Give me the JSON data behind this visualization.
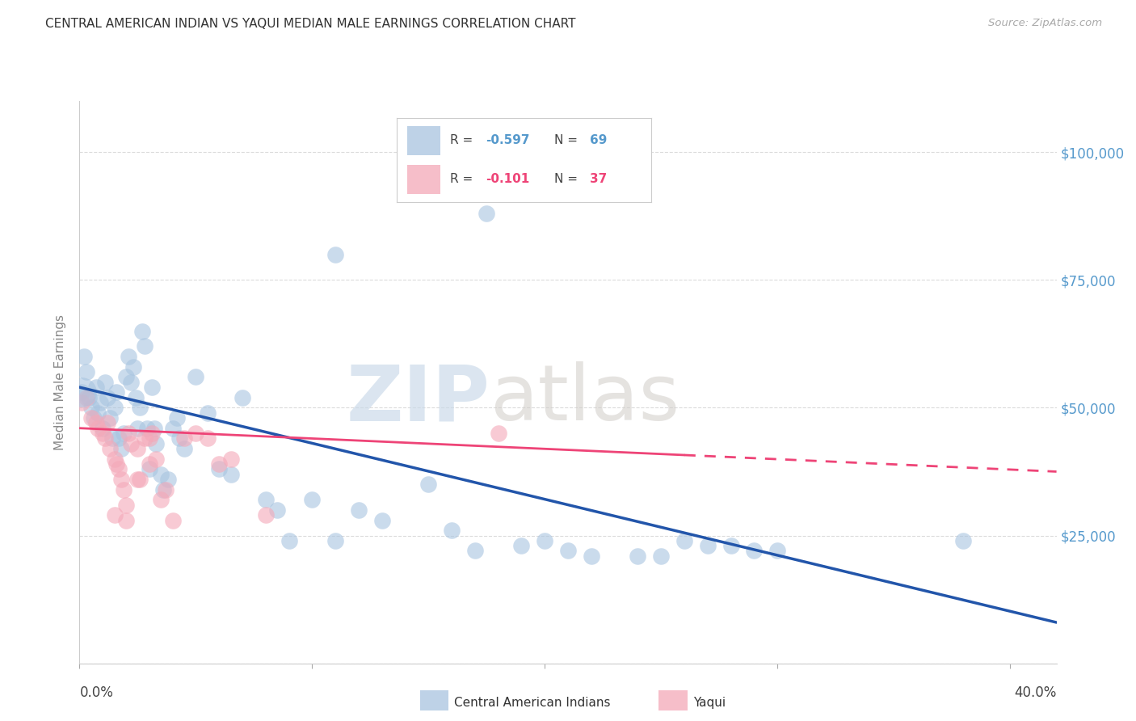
{
  "title": "CENTRAL AMERICAN INDIAN VS YAQUI MEDIAN MALE EARNINGS CORRELATION CHART",
  "source": "Source: ZipAtlas.com",
  "ylabel": "Median Male Earnings",
  "y_ticks": [
    0,
    25000,
    50000,
    75000,
    100000
  ],
  "y_tick_labels": [
    "",
    "$25,000",
    "$50,000",
    "$75,000",
    "$100,000"
  ],
  "x_ticks": [
    0.0,
    0.1,
    0.2,
    0.3,
    0.4
  ],
  "x_tick_labels": [
    "0.0%",
    "",
    "",
    "",
    "40.0%"
  ],
  "xlim": [
    0.0,
    0.42
  ],
  "ylim": [
    0,
    110000
  ],
  "background_color": "#ffffff",
  "grid_color": "#cccccc",
  "watermark_zip": "ZIP",
  "watermark_atlas": "atlas",
  "legend_r1": "-0.597",
  "legend_n1": "69",
  "legend_r2": "-0.101",
  "legend_n2": "37",
  "blue_color": "#a8c4e0",
  "pink_color": "#f4a8b8",
  "blue_line_color": "#2255aa",
  "pink_line_color": "#ee4477",
  "title_color": "#333333",
  "axis_label_color": "#888888",
  "tick_label_color": "#5599cc",
  "source_color": "#aaaaaa",
  "blue_scatter": [
    [
      0.001,
      53000
    ],
    [
      0.002,
      60000
    ],
    [
      0.003,
      57000
    ],
    [
      0.004,
      52000
    ],
    [
      0.005,
      50000
    ],
    [
      0.006,
      48000
    ],
    [
      0.007,
      54000
    ],
    [
      0.008,
      49000
    ],
    [
      0.009,
      51000
    ],
    [
      0.01,
      46000
    ],
    [
      0.011,
      55000
    ],
    [
      0.012,
      52000
    ],
    [
      0.013,
      48000
    ],
    [
      0.014,
      44000
    ],
    [
      0.015,
      50000
    ],
    [
      0.016,
      53000
    ],
    [
      0.017,
      44000
    ],
    [
      0.018,
      42000
    ],
    [
      0.019,
      45000
    ],
    [
      0.02,
      56000
    ],
    [
      0.021,
      60000
    ],
    [
      0.022,
      55000
    ],
    [
      0.023,
      58000
    ],
    [
      0.024,
      52000
    ],
    [
      0.025,
      46000
    ],
    [
      0.026,
      50000
    ],
    [
      0.027,
      65000
    ],
    [
      0.028,
      62000
    ],
    [
      0.029,
      46000
    ],
    [
      0.03,
      38000
    ],
    [
      0.031,
      54000
    ],
    [
      0.032,
      46000
    ],
    [
      0.033,
      43000
    ],
    [
      0.035,
      37000
    ],
    [
      0.036,
      34000
    ],
    [
      0.038,
      36000
    ],
    [
      0.04,
      46000
    ],
    [
      0.042,
      48000
    ],
    [
      0.043,
      44000
    ],
    [
      0.045,
      42000
    ],
    [
      0.05,
      56000
    ],
    [
      0.055,
      49000
    ],
    [
      0.06,
      38000
    ],
    [
      0.065,
      37000
    ],
    [
      0.07,
      52000
    ],
    [
      0.08,
      32000
    ],
    [
      0.085,
      30000
    ],
    [
      0.09,
      24000
    ],
    [
      0.1,
      32000
    ],
    [
      0.11,
      24000
    ],
    [
      0.12,
      30000
    ],
    [
      0.13,
      28000
    ],
    [
      0.15,
      35000
    ],
    [
      0.16,
      26000
    ],
    [
      0.17,
      22000
    ],
    [
      0.175,
      88000
    ],
    [
      0.19,
      23000
    ],
    [
      0.2,
      24000
    ],
    [
      0.21,
      22000
    ],
    [
      0.22,
      21000
    ],
    [
      0.24,
      21000
    ],
    [
      0.25,
      21000
    ],
    [
      0.26,
      24000
    ],
    [
      0.27,
      23000
    ],
    [
      0.28,
      23000
    ],
    [
      0.29,
      22000
    ],
    [
      0.3,
      22000
    ],
    [
      0.38,
      24000
    ],
    [
      0.11,
      80000
    ]
  ],
  "pink_scatter": [
    [
      0.001,
      51000
    ],
    [
      0.003,
      52000
    ],
    [
      0.005,
      48000
    ],
    [
      0.007,
      47000
    ],
    [
      0.008,
      46000
    ],
    [
      0.01,
      45000
    ],
    [
      0.011,
      44000
    ],
    [
      0.012,
      47000
    ],
    [
      0.013,
      42000
    ],
    [
      0.015,
      40000
    ],
    [
      0.016,
      39000
    ],
    [
      0.017,
      38000
    ],
    [
      0.018,
      36000
    ],
    [
      0.019,
      34000
    ],
    [
      0.02,
      31000
    ],
    [
      0.021,
      45000
    ],
    [
      0.022,
      43000
    ],
    [
      0.025,
      42000
    ],
    [
      0.026,
      36000
    ],
    [
      0.028,
      44000
    ],
    [
      0.03,
      44000
    ],
    [
      0.031,
      45000
    ],
    [
      0.033,
      40000
    ],
    [
      0.035,
      32000
    ],
    [
      0.037,
      34000
    ],
    [
      0.04,
      28000
    ],
    [
      0.045,
      44000
    ],
    [
      0.05,
      45000
    ],
    [
      0.055,
      44000
    ],
    [
      0.06,
      39000
    ],
    [
      0.065,
      40000
    ],
    [
      0.08,
      29000
    ],
    [
      0.18,
      45000
    ],
    [
      0.02,
      28000
    ],
    [
      0.025,
      36000
    ],
    [
      0.015,
      29000
    ],
    [
      0.03,
      39000
    ]
  ],
  "blue_line_x": [
    0.0,
    0.42
  ],
  "blue_line_y": [
    54000,
    8000
  ],
  "pink_line_x": [
    0.0,
    0.42
  ],
  "pink_line_y": [
    46000,
    37500
  ],
  "pink_line_dash_start": 0.26
}
